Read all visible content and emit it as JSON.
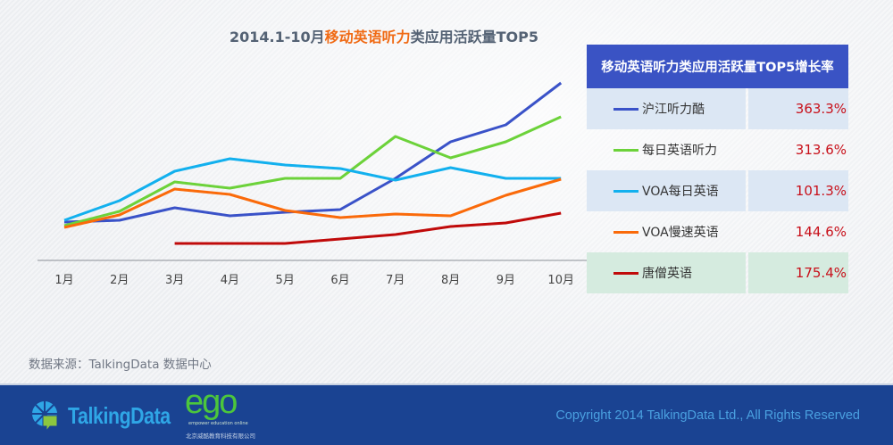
{
  "title": {
    "prefix": "2014.1-10月",
    "highlight": "移动英语听力",
    "suffix": "类应用活跃量TOP5"
  },
  "table": {
    "header": "移动英语听力类应用活跃量TOP5增长率",
    "rows": [
      {
        "name": "沪江听力酷",
        "growth": "363.3%",
        "color": "#3a52c8"
      },
      {
        "name": "每日英语听力",
        "growth": "313.6%",
        "color": "#6cd23a"
      },
      {
        "name": "VOA每日英语",
        "growth": "101.3%",
        "color": "#12b0ee"
      },
      {
        "name": "VOA慢速英语",
        "growth": "144.6%",
        "color": "#fa6a0a"
      },
      {
        "name": "唐僧英语",
        "growth": "175.4%",
        "color": "#c00a0a"
      }
    ]
  },
  "chart_data": {
    "type": "line",
    "title": "2014.1-10月移动英语听力类应用活跃量TOP5",
    "xlabel": "",
    "ylabel": "",
    "categories": [
      "1月",
      "2月",
      "3月",
      "4月",
      "5月",
      "6月",
      "7月",
      "8月",
      "9月",
      "10月"
    ],
    "y_axis_shown": false,
    "ylim": [
      0,
      210
    ],
    "grid": false,
    "legend": "right (table)",
    "series": [
      {
        "name": "沪江听力酷",
        "color": "#3a52c8",
        "values": [
          43,
          45,
          59,
          50,
          54,
          57,
          92,
          133,
          152,
          199
        ]
      },
      {
        "name": "每日英语听力",
        "color": "#6cd23a",
        "values": [
          39,
          55,
          88,
          81,
          92,
          92,
          139,
          115,
          133,
          161
        ]
      },
      {
        "name": "VOA每日英语",
        "color": "#12b0ee",
        "values": [
          45,
          67,
          100,
          114,
          107,
          103,
          90,
          104,
          92,
          92
        ]
      },
      {
        "name": "VOA慢速英语",
        "color": "#fa6a0a",
        "values": [
          37,
          51,
          80,
          74,
          56,
          48,
          52,
          50,
          73,
          91
        ]
      },
      {
        "name": "唐僧英语",
        "color": "#c00a0a",
        "values": [
          null,
          null,
          19,
          19,
          19,
          24,
          29,
          38,
          42,
          53
        ]
      }
    ]
  },
  "source": "数据来源：TalkingData 数据中心",
  "footer": {
    "logo_text": "TalkingData",
    "ego_logo": "ego",
    "ego_tagline": "empower education online",
    "ego_company": "北京威酷教育科技有限公司",
    "copyright": "Copyright 2014 TalkingData Ltd., All Rights Reserved"
  }
}
